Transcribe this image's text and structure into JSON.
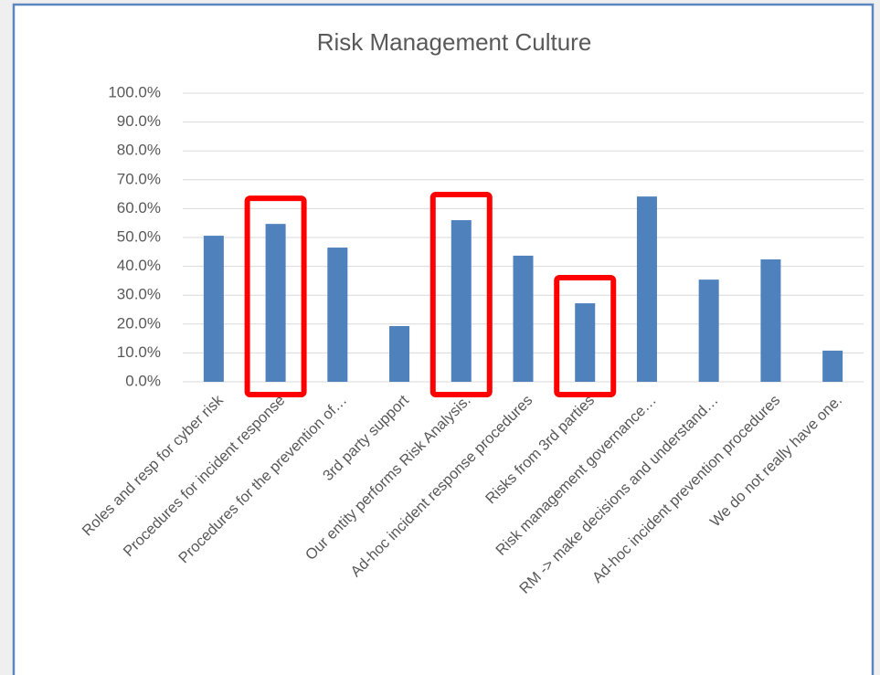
{
  "chart_data": {
    "type": "bar",
    "title": "Risk Management Culture",
    "categories": [
      "Roles and resp for cyber risk",
      "Procedures for incident response",
      "Procedures for the prevention of…",
      "3rd party support",
      "Our entity performs Risk Analysis.",
      "Ad-hoc incident response procedures",
      "Risks from 3rd parties",
      "Risk management governance…",
      "RM -> make decisions and understand…",
      "Ad-hoc incident prevention procedures",
      "We do not really have one."
    ],
    "values": [
      50.6,
      54.7,
      46.5,
      19.3,
      56.0,
      43.7,
      27.2,
      64.2,
      35.4,
      42.4,
      10.8
    ],
    "color": "#4f81bd",
    "highlight": [
      1,
      4,
      6
    ],
    "highlight_color": "#ff0000",
    "ylim": [
      0,
      100
    ],
    "yticks": [
      {
        "value": 0,
        "label": "0.0%"
      },
      {
        "value": 10,
        "label": "10.0%"
      },
      {
        "value": 20,
        "label": "20.0%"
      },
      {
        "value": 30,
        "label": "30.0%"
      },
      {
        "value": 40,
        "label": "40.0%"
      },
      {
        "value": 50,
        "label": "50.0%"
      },
      {
        "value": 60,
        "label": "60.0%"
      },
      {
        "value": 70,
        "label": "70.0%"
      },
      {
        "value": 80,
        "label": "80.0%"
      },
      {
        "value": 90,
        "label": "90.0%"
      },
      {
        "value": 100,
        "label": "100.0%"
      }
    ],
    "grid": true
  }
}
